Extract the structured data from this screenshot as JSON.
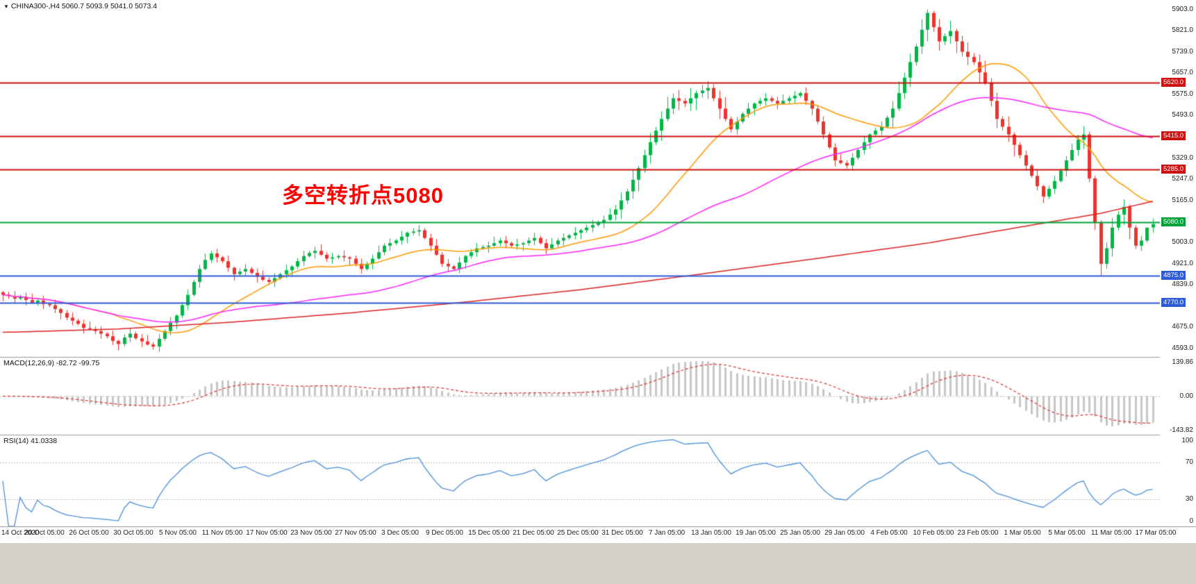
{
  "legend": {
    "collapse_icon": "▼",
    "symbol": "CHINA300-,H4",
    "ohlc": "5060.7 5093.9 5041.0 5073.4"
  },
  "annotation": {
    "text": "多空转折点5080",
    "color": "#ff0000"
  },
  "panels": {
    "macd": {
      "legend": "MACD(12,26,9) -82.72 -99.75",
      "axis_labels": [
        "139.86",
        "0.00",
        "-143.82"
      ]
    },
    "rsi": {
      "legend": "RSI(14) 41.0338",
      "axis_labels": [
        "100",
        "70",
        "30",
        "0"
      ],
      "levels": [
        70,
        30
      ]
    }
  },
  "price_axis_labels": [
    "5903.0",
    "5821.0",
    "5739.0",
    "5657.0",
    "5575.0",
    "5493.0",
    "5329.0",
    "5247.0",
    "5165.0",
    "5003.0",
    "4921.0",
    "4839.0",
    "4675.0",
    "4593.0"
  ],
  "time_axis_labels": [
    "14 Oct 2020",
    "20 Oct 05:00",
    "26 Oct 05:00",
    "30 Oct 05:00",
    "5 Nov 05:00",
    "11 Nov 05:00",
    "17 Nov 05:00",
    "23 Nov 05:00",
    "27 Nov 05:00",
    "3 Dec 05:00",
    "9 Dec 05:00",
    "15 Dec 05:00",
    "21 Dec 05:00",
    "25 Dec 05:00",
    "31 Dec 05:00",
    "7 Jan 05:00",
    "13 Jan 05:00",
    "19 Jan 05:00",
    "25 Jan 05:00",
    "29 Jan 05:00",
    "4 Feb 05:00",
    "10 Feb 05:00",
    "23 Feb 05:00",
    "1 Mar 05:00",
    "5 Mar 05:00",
    "11 Mar 05:00",
    "17 Mar 05:00"
  ],
  "levels": [
    {
      "label": "5620.0",
      "price": 5620,
      "color": "#cc1111"
    },
    {
      "label": "5415.0",
      "price": 5415,
      "color": "#cc1111"
    },
    {
      "label": "5285.0",
      "price": 5285,
      "color": "#cc1111"
    },
    {
      "label": "5080.0",
      "price": 5080,
      "color": "#00a33a"
    },
    {
      "label": "4875.0",
      "price": 4875,
      "color": "#2e5bd6"
    },
    {
      "label": "4770.0",
      "price": 4770,
      "color": "#2e5bd6"
    }
  ],
  "colors": {
    "bg": "#ffffff",
    "up": "#00b746",
    "down": "#e8352e",
    "ma_fast": "#ff9900",
    "ma_mid": "#ff22ff",
    "ma_slow": "#dd2222",
    "macd_hist": "#c6c6c6",
    "macd_signal": "#e03030",
    "rsi_line": "#4a90d9",
    "axis_text": "#222222",
    "separator": "#9a9a9a",
    "annotation": "#ff0000",
    "footer": "#d4d0c8"
  },
  "chart_data": {
    "type": "candlestick",
    "symbol": "CHINA300-",
    "timeframe": "H4",
    "last_ohlc": {
      "open": 5060.7,
      "high": 5093.9,
      "low": 5041.0,
      "close": 5073.4
    },
    "ylim": [
      4560,
      5940
    ],
    "horizontal_lines": [
      5620,
      5415,
      5285,
      5080,
      4875,
      4770
    ],
    "overlays": [
      {
        "name": "ma-fast",
        "type": "sma",
        "period": 20,
        "color_key": "ma_fast"
      },
      {
        "name": "ma-mid",
        "type": "sma",
        "period": 55,
        "color_key": "ma_mid"
      },
      {
        "name": "ma-slow",
        "type": "anchors",
        "color_key": "ma_slow",
        "points": [
          [
            0,
            4655
          ],
          [
            20,
            4668
          ],
          [
            40,
            4695
          ],
          [
            60,
            4730
          ],
          [
            80,
            4772
          ],
          [
            100,
            4820
          ],
          [
            120,
            4878
          ],
          [
            140,
            4938
          ],
          [
            160,
            5000
          ],
          [
            175,
            5058
          ],
          [
            190,
            5115
          ],
          [
            199,
            5162
          ]
        ]
      }
    ],
    "indicators": {
      "macd": {
        "fast": 12,
        "slow": 26,
        "signal": 9,
        "current": [
          -82.72,
          -99.75
        ]
      },
      "rsi": {
        "period": 14,
        "current": 41.0338,
        "levels": [
          70,
          30
        ]
      }
    },
    "candles": [
      [
        4810,
        4815,
        4775,
        4800
      ],
      [
        4800,
        4812,
        4785,
        4795
      ],
      [
        4795,
        4815,
        4767,
        4785
      ],
      [
        4785,
        4800,
        4779,
        4792
      ],
      [
        4792,
        4808,
        4758,
        4780
      ],
      [
        4780,
        4805,
        4765,
        4770
      ],
      [
        4770,
        4788,
        4758,
        4778
      ],
      [
        4778,
        4796,
        4745,
        4765
      ],
      [
        4765,
        4771,
        4752,
        4760
      ],
      [
        4760,
        4782,
        4729,
        4745
      ],
      [
        4745,
        4750,
        4705,
        4730
      ],
      [
        4730,
        4742,
        4702,
        4712
      ],
      [
        4712,
        4732,
        4682,
        4700
      ],
      [
        4700,
        4708,
        4682,
        4688
      ],
      [
        4688,
        4704,
        4650,
        4672
      ],
      [
        4672,
        4697,
        4663,
        4668
      ],
      [
        4668,
        4678,
        4648,
        4660
      ],
      [
        4660,
        4678,
        4630,
        4650
      ],
      [
        4650,
        4656,
        4632,
        4640
      ],
      [
        4640,
        4662,
        4606,
        4622
      ],
      [
        4622,
        4627,
        4585,
        4610
      ],
      [
        4610,
        4647,
        4600,
        4635
      ],
      [
        4635,
        4670,
        4617,
        4650
      ],
      [
        4650,
        4658,
        4626,
        4632
      ],
      [
        4632,
        4648,
        4598,
        4620
      ],
      [
        4620,
        4645,
        4603,
        4608
      ],
      [
        4608,
        4618,
        4588,
        4600
      ],
      [
        4600,
        4648,
        4580,
        4630
      ],
      [
        4630,
        4666,
        4622,
        4660
      ],
      [
        4660,
        4714,
        4644,
        4692
      ],
      [
        4692,
        4725,
        4667,
        4720
      ],
      [
        4720,
        4772,
        4710,
        4760
      ],
      [
        4760,
        4820,
        4742,
        4800
      ],
      [
        4800,
        4858,
        4794,
        4850
      ],
      [
        4850,
        4916,
        4828,
        4900
      ],
      [
        4900,
        4960,
        4895,
        4935
      ],
      [
        4935,
        4970,
        4923,
        4960
      ],
      [
        4960,
        4978,
        4925,
        4945
      ],
      [
        4945,
        4951,
        4922,
        4930
      ],
      [
        4930,
        4952,
        4889,
        4905
      ],
      [
        4905,
        4910,
        4855,
        4880
      ],
      [
        4880,
        4902,
        4870,
        4890
      ],
      [
        4890,
        4920,
        4872,
        4900
      ],
      [
        4900,
        4908,
        4879,
        4885
      ],
      [
        4885,
        4901,
        4848,
        4870
      ],
      [
        4870,
        4895,
        4853,
        4858
      ],
      [
        4858,
        4868,
        4838,
        4850
      ],
      [
        4850,
        4883,
        4830,
        4865
      ],
      [
        4865,
        4886,
        4857,
        4880
      ],
      [
        4880,
        4917,
        4864,
        4895
      ],
      [
        4895,
        4915,
        4870,
        4910
      ],
      [
        4910,
        4942,
        4900,
        4930
      ],
      [
        4930,
        4970,
        4912,
        4950
      ],
      [
        4950,
        4970,
        4944,
        4962
      ],
      [
        4962,
        4986,
        4940,
        4970
      ],
      [
        4970,
        4995,
        4950,
        4955
      ],
      [
        4955,
        4965,
        4928,
        4940
      ],
      [
        4940,
        4963,
        4920,
        4945
      ],
      [
        4945,
        4956,
        4937,
        4950
      ],
      [
        4950,
        4972,
        4929,
        4945
      ],
      [
        4945,
        4950,
        4915,
        4940
      ],
      [
        4940,
        4952,
        4910,
        4920
      ],
      [
        4920,
        4940,
        4882,
        4900
      ],
      [
        4900,
        4928,
        4894,
        4920
      ],
      [
        4920,
        4956,
        4898,
        4940
      ],
      [
        4940,
        4990,
        4935,
        4965
      ],
      [
        4965,
        5000,
        4953,
        4990
      ],
      [
        4990,
        5018,
        4970,
        5000
      ],
      [
        5000,
        5016,
        4992,
        5010
      ],
      [
        5010,
        5047,
        4994,
        5025
      ],
      [
        5025,
        5045,
        5000,
        5040
      ],
      [
        5040,
        5057,
        5030,
        5045
      ],
      [
        5045,
        5070,
        5027,
        5050
      ],
      [
        5050,
        5058,
        5014,
        5020
      ],
      [
        5020,
        5036,
        4968,
        4990
      ],
      [
        4990,
        5015,
        4950,
        4955
      ],
      [
        4955,
        4965,
        4908,
        4920
      ],
      [
        4920,
        4938,
        4890,
        4910
      ],
      [
        4910,
        4916,
        4892,
        4900
      ],
      [
        4900,
        4947,
        4884,
        4925
      ],
      [
        4925,
        4955,
        4900,
        4950
      ],
      [
        4950,
        4977,
        4940,
        4965
      ],
      [
        4965,
        5000,
        4947,
        4980
      ],
      [
        4980,
        4993,
        4974,
        4985
      ],
      [
        4985,
        5006,
        4963,
        4990
      ],
      [
        4990,
        5025,
        4985,
        5000
      ],
      [
        5000,
        5020,
        4988,
        5010
      ],
      [
        5010,
        5028,
        4980,
        5000
      ],
      [
        5000,
        5006,
        4982,
        4990
      ],
      [
        4990,
        5017,
        4974,
        4995
      ],
      [
        4995,
        5005,
        4970,
        5000
      ],
      [
        5000,
        5022,
        4990,
        5010
      ],
      [
        5010,
        5040,
        4992,
        5020
      ],
      [
        5020,
        5028,
        4994,
        5000
      ],
      [
        5000,
        5016,
        4958,
        4980
      ],
      [
        4980,
        5020,
        4975,
        4995
      ],
      [
        4995,
        5020,
        4983,
        5010
      ],
      [
        5010,
        5038,
        4990,
        5020
      ],
      [
        5020,
        5036,
        5012,
        5030
      ],
      [
        5030,
        5062,
        5014,
        5040
      ],
      [
        5040,
        5055,
        5015,
        5050
      ],
      [
        5050,
        5072,
        5040,
        5060
      ],
      [
        5060,
        5090,
        5042,
        5070
      ],
      [
        5070,
        5088,
        5064,
        5080
      ],
      [
        5080,
        5106,
        5058,
        5090
      ],
      [
        5090,
        5135,
        5085,
        5110
      ],
      [
        5110,
        5148,
        5088,
        5130
      ],
      [
        5130,
        5197,
        5094,
        5165
      ],
      [
        5165,
        5211,
        5151,
        5200
      ],
      [
        5200,
        5285,
        5171,
        5245
      ],
      [
        5245,
        5299,
        5200,
        5290
      ],
      [
        5290,
        5362,
        5272,
        5340
      ],
      [
        5340,
        5426,
        5308,
        5390
      ],
      [
        5390,
        5449,
        5379,
        5435
      ],
      [
        5435,
        5509,
        5395,
        5480
      ],
      [
        5480,
        5565,
        5471,
        5520
      ],
      [
        5520,
        5578,
        5498,
        5560
      ],
      [
        5560,
        5592,
        5514,
        5550
      ],
      [
        5550,
        5561,
        5526,
        5540
      ],
      [
        5540,
        5600,
        5511,
        5560
      ],
      [
        5560,
        5589,
        5515,
        5580
      ],
      [
        5580,
        5612,
        5562,
        5590
      ],
      [
        5590,
        5626,
        5558,
        5600
      ],
      [
        5600,
        5614,
        5549,
        5560
      ],
      [
        5560,
        5589,
        5480,
        5520
      ],
      [
        5520,
        5565,
        5471,
        5480
      ],
      [
        5480,
        5490,
        5428,
        5440
      ],
      [
        5440,
        5488,
        5420,
        5470
      ],
      [
        5470,
        5506,
        5462,
        5500
      ],
      [
        5500,
        5542,
        5484,
        5520
      ],
      [
        5520,
        5545,
        5495,
        5540
      ],
      [
        5540,
        5562,
        5530,
        5550
      ],
      [
        5550,
        5580,
        5532,
        5560
      ],
      [
        5560,
        5568,
        5544,
        5550
      ],
      [
        5550,
        5566,
        5518,
        5540
      ],
      [
        5540,
        5575,
        5535,
        5550
      ],
      [
        5550,
        5570,
        5538,
        5560
      ],
      [
        5560,
        5588,
        5540,
        5570
      ],
      [
        5570,
        5586,
        5562,
        5580
      ],
      [
        5580,
        5602,
        5534,
        5550
      ],
      [
        5550,
        5555,
        5495,
        5520
      ],
      [
        5520,
        5532,
        5460,
        5470
      ],
      [
        5470,
        5490,
        5402,
        5420
      ],
      [
        5420,
        5428,
        5364,
        5370
      ],
      [
        5370,
        5386,
        5298,
        5320
      ],
      [
        5320,
        5345,
        5305,
        5310
      ],
      [
        5310,
        5320,
        5288,
        5300
      ],
      [
        5300,
        5348,
        5280,
        5330
      ],
      [
        5330,
        5366,
        5322,
        5360
      ],
      [
        5360,
        5412,
        5344,
        5390
      ],
      [
        5390,
        5425,
        5365,
        5420
      ],
      [
        5420,
        5447,
        5410,
        5435
      ],
      [
        5435,
        5470,
        5417,
        5450
      ],
      [
        5450,
        5493,
        5444,
        5485
      ],
      [
        5485,
        5549,
        5445,
        5520
      ],
      [
        5520,
        5625,
        5511,
        5580
      ],
      [
        5580,
        5658,
        5558,
        5640
      ],
      [
        5640,
        5732,
        5604,
        5700
      ],
      [
        5700,
        5771,
        5686,
        5760
      ],
      [
        5760,
        5865,
        5731,
        5825
      ],
      [
        5825,
        5903,
        5780,
        5890
      ],
      [
        5890,
        5898,
        5817,
        5835
      ],
      [
        5835,
        5867,
        5744,
        5780
      ],
      [
        5780,
        5811,
        5766,
        5800
      ],
      [
        5800,
        5860,
        5771,
        5820
      ],
      [
        5820,
        5829,
        5735,
        5780
      ],
      [
        5780,
        5802,
        5722,
        5740
      ],
      [
        5740,
        5776,
        5688,
        5720
      ],
      [
        5720,
        5734,
        5689,
        5700
      ],
      [
        5700,
        5729,
        5620,
        5660
      ],
      [
        5660,
        5705,
        5611,
        5620
      ],
      [
        5620,
        5638,
        5528,
        5550
      ],
      [
        5550,
        5582,
        5444,
        5480
      ],
      [
        5480,
        5491,
        5436,
        5450
      ],
      [
        5450,
        5490,
        5391,
        5420
      ],
      [
        5420,
        5429,
        5335,
        5380
      ],
      [
        5380,
        5390,
        5328,
        5340
      ],
      [
        5340,
        5358,
        5280,
        5300
      ],
      [
        5300,
        5306,
        5252,
        5260
      ],
      [
        5260,
        5282,
        5204,
        5220
      ],
      [
        5220,
        5225,
        5155,
        5180
      ],
      [
        5180,
        5222,
        5170,
        5210
      ],
      [
        5210,
        5260,
        5192,
        5240
      ],
      [
        5240,
        5288,
        5234,
        5280
      ],
      [
        5280,
        5336,
        5258,
        5320
      ],
      [
        5320,
        5385,
        5315,
        5360
      ],
      [
        5360,
        5418,
        5338,
        5400
      ],
      [
        5400,
        5452,
        5364,
        5420
      ],
      [
        5420,
        5431,
        5236,
        5250
      ],
      [
        5250,
        5260,
        5051,
        5080
      ],
      [
        5080,
        5089,
        4875,
        4920
      ],
      [
        4920,
        5002,
        4902,
        4980
      ],
      [
        4980,
        5096,
        4948,
        5060
      ],
      [
        5060,
        5124,
        5049,
        5110
      ],
      [
        5110,
        5169,
        5070,
        5140
      ],
      [
        5140,
        5149,
        5015,
        5060
      ],
      [
        5060,
        5070,
        4978,
        4990
      ],
      [
        4990,
        5028,
        4970,
        5010
      ],
      [
        5010,
        5046,
        5002,
        5060
      ],
      [
        5060.7,
        5093.9,
        5041.0,
        5073.4
      ]
    ]
  }
}
